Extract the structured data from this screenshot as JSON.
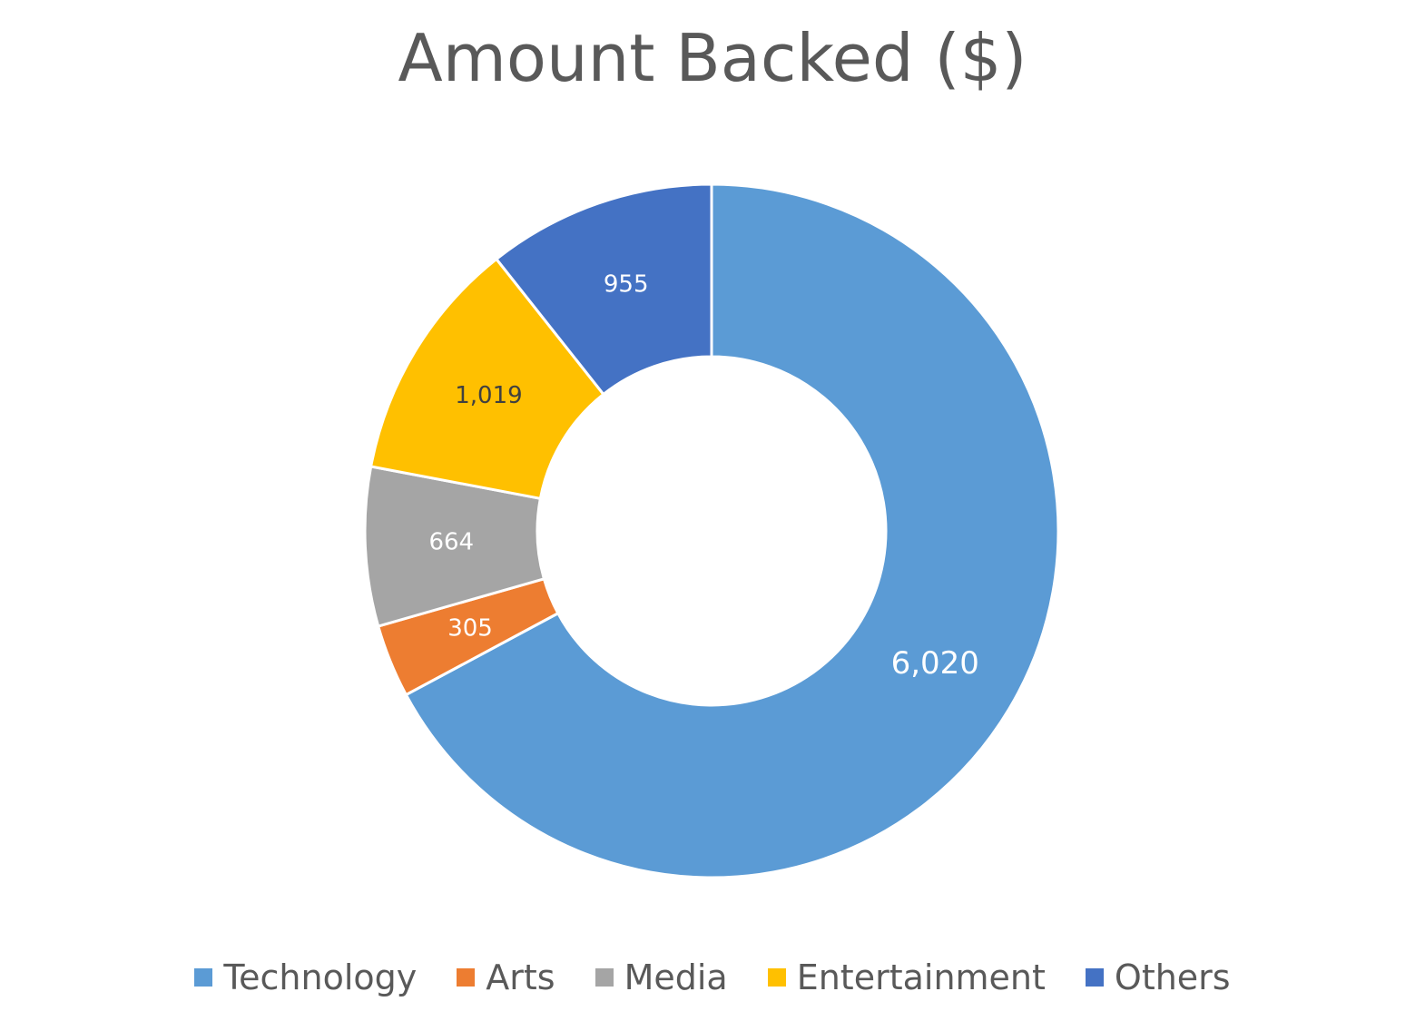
{
  "chart_data": {
    "type": "pie",
    "variant": "donut",
    "title": "Amount Backed ($)",
    "categories": [
      "Technology",
      "Arts",
      "Media",
      "Entertainment",
      "Others"
    ],
    "values": [
      6020,
      305,
      664,
      1019,
      955
    ],
    "value_labels": [
      "6,020",
      "305",
      "664",
      "1,019",
      "955"
    ],
    "colors": [
      "#5B9BD5",
      "#ED7D31",
      "#A5A5A5",
      "#FFC000",
      "#4472C4"
    ],
    "label_colors": [
      "#ffffff",
      "#ffffff",
      "#ffffff",
      "#404040",
      "#ffffff"
    ],
    "legend": "bottom"
  }
}
